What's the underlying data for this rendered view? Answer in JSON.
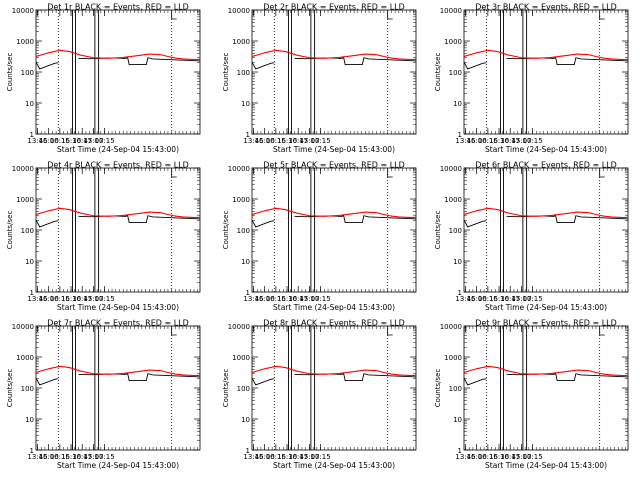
{
  "colors": {
    "events": "#000000",
    "lld": "#ff0000",
    "background": "#ffffff"
  },
  "layout": {
    "rows": 3,
    "cols": 3
  },
  "chart_data": [
    {
      "type": "line",
      "title": "Det 1r  BLACK = Events, RED = LLD",
      "xlabel": "Start Time (24-Sep-04 15:43:00)",
      "ylabel": "Counts/sec",
      "yscale": "log",
      "ylim": [
        1,
        10000
      ],
      "xlim": [
        "13:43",
        "17:23"
      ],
      "x_tick_labels": [
        "13:45",
        "16:00",
        "16:15",
        "16:30",
        "16:45",
        "17:00",
        "17:15"
      ],
      "y_tick_labels": [
        "1",
        "10",
        "100",
        "1000",
        "10000"
      ],
      "grid": false,
      "series": [
        {
          "name": "Events",
          "color": "#000000"
        },
        {
          "name": "LLD",
          "color": "#ff0000"
        }
      ]
    },
    {
      "type": "line",
      "title": "Det 2r  BLACK = Events, RED = LLD",
      "xlabel": "Start Time (24-Sep-04 15:43:00)",
      "ylabel": "Counts/sec",
      "yscale": "log",
      "ylim": [
        1,
        10000
      ],
      "xlim": [
        "13:43",
        "17:23"
      ],
      "x_tick_labels": [
        "13:45",
        "16:00",
        "16:15",
        "16:30",
        "16:45",
        "17:00",
        "17:15"
      ],
      "y_tick_labels": [
        "1",
        "10",
        "100",
        "1000",
        "10000"
      ],
      "grid": false,
      "series": [
        {
          "name": "Events",
          "color": "#000000"
        },
        {
          "name": "LLD",
          "color": "#ff0000"
        }
      ]
    },
    {
      "type": "line",
      "title": "Det 3r  BLACK = Events, RED = LLD",
      "xlabel": "Start Time (24-Sep-04 15:43:00)",
      "ylabel": "Counts/sec",
      "yscale": "log",
      "ylim": [
        1,
        10000
      ],
      "xlim": [
        "13:43",
        "17:23"
      ],
      "x_tick_labels": [
        "13:45",
        "16:00",
        "16:15",
        "16:30",
        "16:45",
        "17:00",
        "17:15"
      ],
      "y_tick_labels": [
        "1",
        "10",
        "100",
        "1000",
        "10000"
      ],
      "grid": false,
      "series": [
        {
          "name": "Events",
          "color": "#000000"
        },
        {
          "name": "LLD",
          "color": "#ff0000"
        }
      ]
    },
    {
      "type": "line",
      "title": "Det 4r  BLACK = Events, RED = LLD",
      "xlabel": "Start Time (24-Sep-04 15:43:00)",
      "ylabel": "Counts/sec",
      "yscale": "log",
      "ylim": [
        1,
        10000
      ],
      "xlim": [
        "13:43",
        "17:23"
      ],
      "x_tick_labels": [
        "13:45",
        "16:00",
        "16:15",
        "16:30",
        "16:45",
        "17:00",
        "17:15"
      ],
      "y_tick_labels": [
        "1",
        "10",
        "100",
        "1000",
        "10000"
      ],
      "grid": false,
      "series": [
        {
          "name": "Events",
          "color": "#000000"
        },
        {
          "name": "LLD",
          "color": "#ff0000"
        }
      ]
    },
    {
      "type": "line",
      "title": "Det 5r  BLACK = Events, RED = LLD",
      "xlabel": "Start Time (24-Sep-04 15:43:00)",
      "ylabel": "Counts/sec",
      "yscale": "log",
      "ylim": [
        1,
        10000
      ],
      "xlim": [
        "13:43",
        "17:23"
      ],
      "x_tick_labels": [
        "13:45",
        "16:00",
        "16:15",
        "16:30",
        "16:45",
        "17:00",
        "17:15"
      ],
      "y_tick_labels": [
        "1",
        "10",
        "100",
        "1000",
        "10000"
      ],
      "grid": false,
      "series": [
        {
          "name": "Events",
          "color": "#000000"
        },
        {
          "name": "LLD",
          "color": "#ff0000"
        }
      ]
    },
    {
      "type": "line",
      "title": "Det 6r  BLACK = Events, RED = LLD",
      "xlabel": "Start Time (24-Sep-04 15:43:00)",
      "ylabel": "Counts/sec",
      "yscale": "log",
      "ylim": [
        1,
        10000
      ],
      "xlim": [
        "13:43",
        "17:23"
      ],
      "x_tick_labels": [
        "13:45",
        "16:00",
        "16:15",
        "16:30",
        "16:45",
        "17:00",
        "17:15"
      ],
      "y_tick_labels": [
        "1",
        "10",
        "100",
        "1000",
        "10000"
      ],
      "grid": false,
      "series": [
        {
          "name": "Events",
          "color": "#000000"
        },
        {
          "name": "LLD",
          "color": "#ff0000"
        }
      ]
    },
    {
      "type": "line",
      "title": "Det 7r  BLACK = Events, RED = LLD",
      "xlabel": "Start Time (24-Sep-04 15:43:00)",
      "ylabel": "Counts/sec",
      "yscale": "log",
      "ylim": [
        1,
        10000
      ],
      "xlim": [
        "13:43",
        "17:23"
      ],
      "x_tick_labels": [
        "13:45",
        "16:00",
        "16:15",
        "16:30",
        "16:45",
        "17:00",
        "17:15"
      ],
      "y_tick_labels": [
        "1",
        "10",
        "100",
        "1000",
        "10000"
      ],
      "grid": false,
      "series": [
        {
          "name": "Events",
          "color": "#000000"
        },
        {
          "name": "LLD",
          "color": "#ff0000"
        }
      ]
    },
    {
      "type": "line",
      "title": "Det 8r  BLACK = Events, RED = LLD",
      "xlabel": "Start Time (24-Sep-04 15:43:00)",
      "ylabel": "Counts/sec",
      "yscale": "log",
      "ylim": [
        1,
        10000
      ],
      "xlim": [
        "13:43",
        "17:23"
      ],
      "x_tick_labels": [
        "13:45",
        "16:00",
        "16:15",
        "16:30",
        "16:45",
        "17:00",
        "17:15"
      ],
      "y_tick_labels": [
        "1",
        "10",
        "100",
        "1000",
        "10000"
      ],
      "grid": false,
      "series": [
        {
          "name": "Events",
          "color": "#000000"
        },
        {
          "name": "LLD",
          "color": "#ff0000"
        }
      ]
    },
    {
      "type": "line",
      "title": "Det 9r  BLACK = Events, RED = LLD",
      "xlabel": "Start Time (24-Sep-04 15:43:00)",
      "ylabel": "Counts/sec",
      "yscale": "log",
      "ylim": [
        1,
        10000
      ],
      "xlim": [
        "13:43",
        "17:23"
      ],
      "x_tick_labels": [
        "13:45",
        "16:00",
        "16:15",
        "16:30",
        "16:45",
        "17:00",
        "17:15"
      ],
      "y_tick_labels": [
        "1",
        "10",
        "100",
        "1000",
        "10000"
      ],
      "grid": false,
      "series": [
        {
          "name": "Events",
          "color": "#000000"
        },
        {
          "name": "LLD",
          "color": "#ff0000"
        }
      ]
    }
  ]
}
